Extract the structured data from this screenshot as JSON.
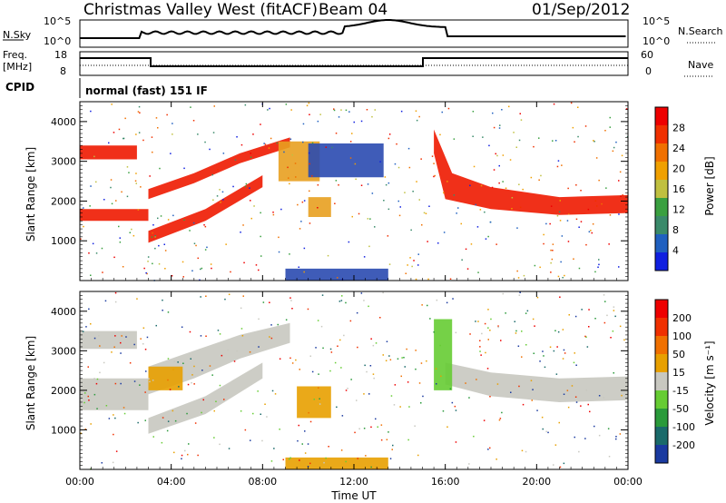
{
  "header": {
    "radar": "Christmas Valley West (fitACF)",
    "beam": "Beam 04",
    "date": "01/Sep/2012"
  },
  "top_panels": {
    "nsky_label": "N.Sky",
    "nsky_ticks": [
      "10^5",
      "10^0"
    ],
    "nsearch_label": "N.Search",
    "right_ticks": [
      "10^5",
      "10^0"
    ],
    "freq_label_1": "Freq.",
    "freq_label_2": "[MHz]",
    "freq_ticks": [
      "18",
      "8"
    ],
    "nave_ticks": [
      "60",
      "0"
    ],
    "nave_label": "Nave",
    "cpid_label": "CPID",
    "cpid_text": "normal (fast) 151 IF"
  },
  "colors": {
    "power_scale": [
      "#1020e0",
      "#2060c0",
      "#3a8a6a",
      "#3aa040",
      "#c0c040",
      "#f0a000",
      "#f07000",
      "#f03000",
      "#ee0000"
    ],
    "velocity_scale": [
      "#1a3aa0",
      "#1a6a6a",
      "#2a9a3a",
      "#66cc33",
      "#c8c8c0",
      "#e8a000",
      "#f07000",
      "#f03000",
      "#ee0000"
    ]
  },
  "chart_data": [
    {
      "type": "heatmap",
      "title": "Power",
      "ylabel": "Slant Range [km]",
      "ylim": [
        0,
        4500
      ],
      "yticks": [
        "1000",
        "2000",
        "3000",
        "4000"
      ],
      "xticks": [
        "00:00",
        "04:00",
        "08:00",
        "12:00",
        "16:00",
        "20:00",
        "00:00"
      ],
      "xlim_hours": [
        0,
        24
      ],
      "colorbar": {
        "label": "Power [dB]",
        "ticks": [
          "28",
          "24",
          "20",
          "16",
          "12",
          "8",
          "4"
        ],
        "range": [
          0,
          30
        ]
      },
      "bands": [
        {
          "x": [
            0,
            3,
            3,
            5,
            7,
            9.2,
            9.2,
            7,
            5,
            3,
            3,
            0
          ],
          "y": [
            1800,
            1800,
            2300,
            2700,
            3200,
            3600,
            3350,
            2950,
            2450,
            2050,
            1500,
            1500
          ],
          "color_key": "power_strong"
        },
        {
          "x": [
            0,
            2.5,
            2.5,
            0
          ],
          "y": [
            3400,
            3400,
            3050,
            3050
          ],
          "color_key": "power_strong"
        },
        {
          "x": [
            3,
            5.5,
            8,
            8,
            5.5,
            3
          ],
          "y": [
            1250,
            1800,
            2650,
            2350,
            1500,
            950
          ],
          "color_key": "power_strong"
        },
        {
          "x": [
            15.5,
            16.3,
            18,
            21,
            24,
            24,
            21,
            18,
            16,
            15.5
          ],
          "y": [
            3800,
            2700,
            2350,
            2100,
            2150,
            1700,
            1650,
            1800,
            2050,
            3200
          ],
          "color_key": "power_strong"
        },
        {
          "x": [
            8.7,
            10.5,
            10.5,
            8.7
          ],
          "y": [
            3500,
            3500,
            2500,
            2500
          ],
          "color_key": "power_mid"
        },
        {
          "x": [
            10,
            13.3,
            13.3,
            10
          ],
          "y": [
            3450,
            3450,
            2600,
            2600
          ],
          "color_key": "power_weak"
        },
        {
          "x": [
            10,
            11,
            11,
            10
          ],
          "y": [
            2100,
            2100,
            1600,
            1600
          ],
          "color_key": "power_mid"
        },
        {
          "x": [
            9,
            13.5,
            13.5,
            9
          ],
          "y": [
            300,
            300,
            0,
            0
          ],
          "color_key": "power_weak"
        }
      ]
    },
    {
      "type": "heatmap",
      "title": "Velocity",
      "ylabel": "Slant Range [km]",
      "xlabel": "Time UT",
      "ylim": [
        0,
        4500
      ],
      "yticks": [
        "1000",
        "2000",
        "3000",
        "4000"
      ],
      "xticks": [
        "00:00",
        "04:00",
        "08:00",
        "12:00",
        "16:00",
        "20:00",
        "00:00"
      ],
      "xlim_hours": [
        0,
        24
      ],
      "colorbar": {
        "label": "Velocity [m s⁻¹]",
        "ticks": [
          "200",
          "100",
          "50",
          "15",
          "-15",
          "-50",
          "-100",
          "-200"
        ],
        "range": [
          -250,
          250
        ]
      },
      "bands": [
        {
          "x": [
            0,
            3,
            3,
            5,
            7,
            9.2,
            9.2,
            7,
            5,
            3,
            3,
            0
          ],
          "y": [
            2300,
            2300,
            2600,
            3000,
            3400,
            3700,
            3200,
            2800,
            2300,
            1900,
            1500,
            1500
          ],
          "color_key": "vel_zero"
        },
        {
          "x": [
            0,
            2.5,
            2.5,
            0
          ],
          "y": [
            3500,
            3500,
            3050,
            3050
          ],
          "color_key": "vel_zero"
        },
        {
          "x": [
            3,
            5.5,
            8,
            8,
            5.5,
            3
          ],
          "y": [
            1300,
            1850,
            2700,
            2300,
            1400,
            900
          ],
          "color_key": "vel_zero"
        },
        {
          "x": [
            16,
            18,
            21,
            24,
            24,
            21,
            18,
            16
          ],
          "y": [
            2700,
            2450,
            2300,
            2350,
            1750,
            1700,
            1850,
            2150
          ],
          "color_key": "vel_zero"
        },
        {
          "x": [
            15.5,
            16.3,
            16.3,
            15.5
          ],
          "y": [
            3800,
            3800,
            2000,
            2000
          ],
          "color_key": "vel_pos"
        },
        {
          "x": [
            9.5,
            11,
            11,
            9.5
          ],
          "y": [
            2100,
            2100,
            1300,
            1300
          ],
          "color_key": "vel_neg"
        },
        {
          "x": [
            3,
            4.5,
            4.5,
            3
          ],
          "y": [
            2600,
            2600,
            2000,
            2000
          ],
          "color_key": "vel_neg"
        },
        {
          "x": [
            9,
            13.5,
            13.5,
            9
          ],
          "y": [
            300,
            300,
            0,
            0
          ],
          "color_key": "vel_neg"
        }
      ]
    }
  ],
  "footer": {
    "xlabel": "Time UT"
  }
}
